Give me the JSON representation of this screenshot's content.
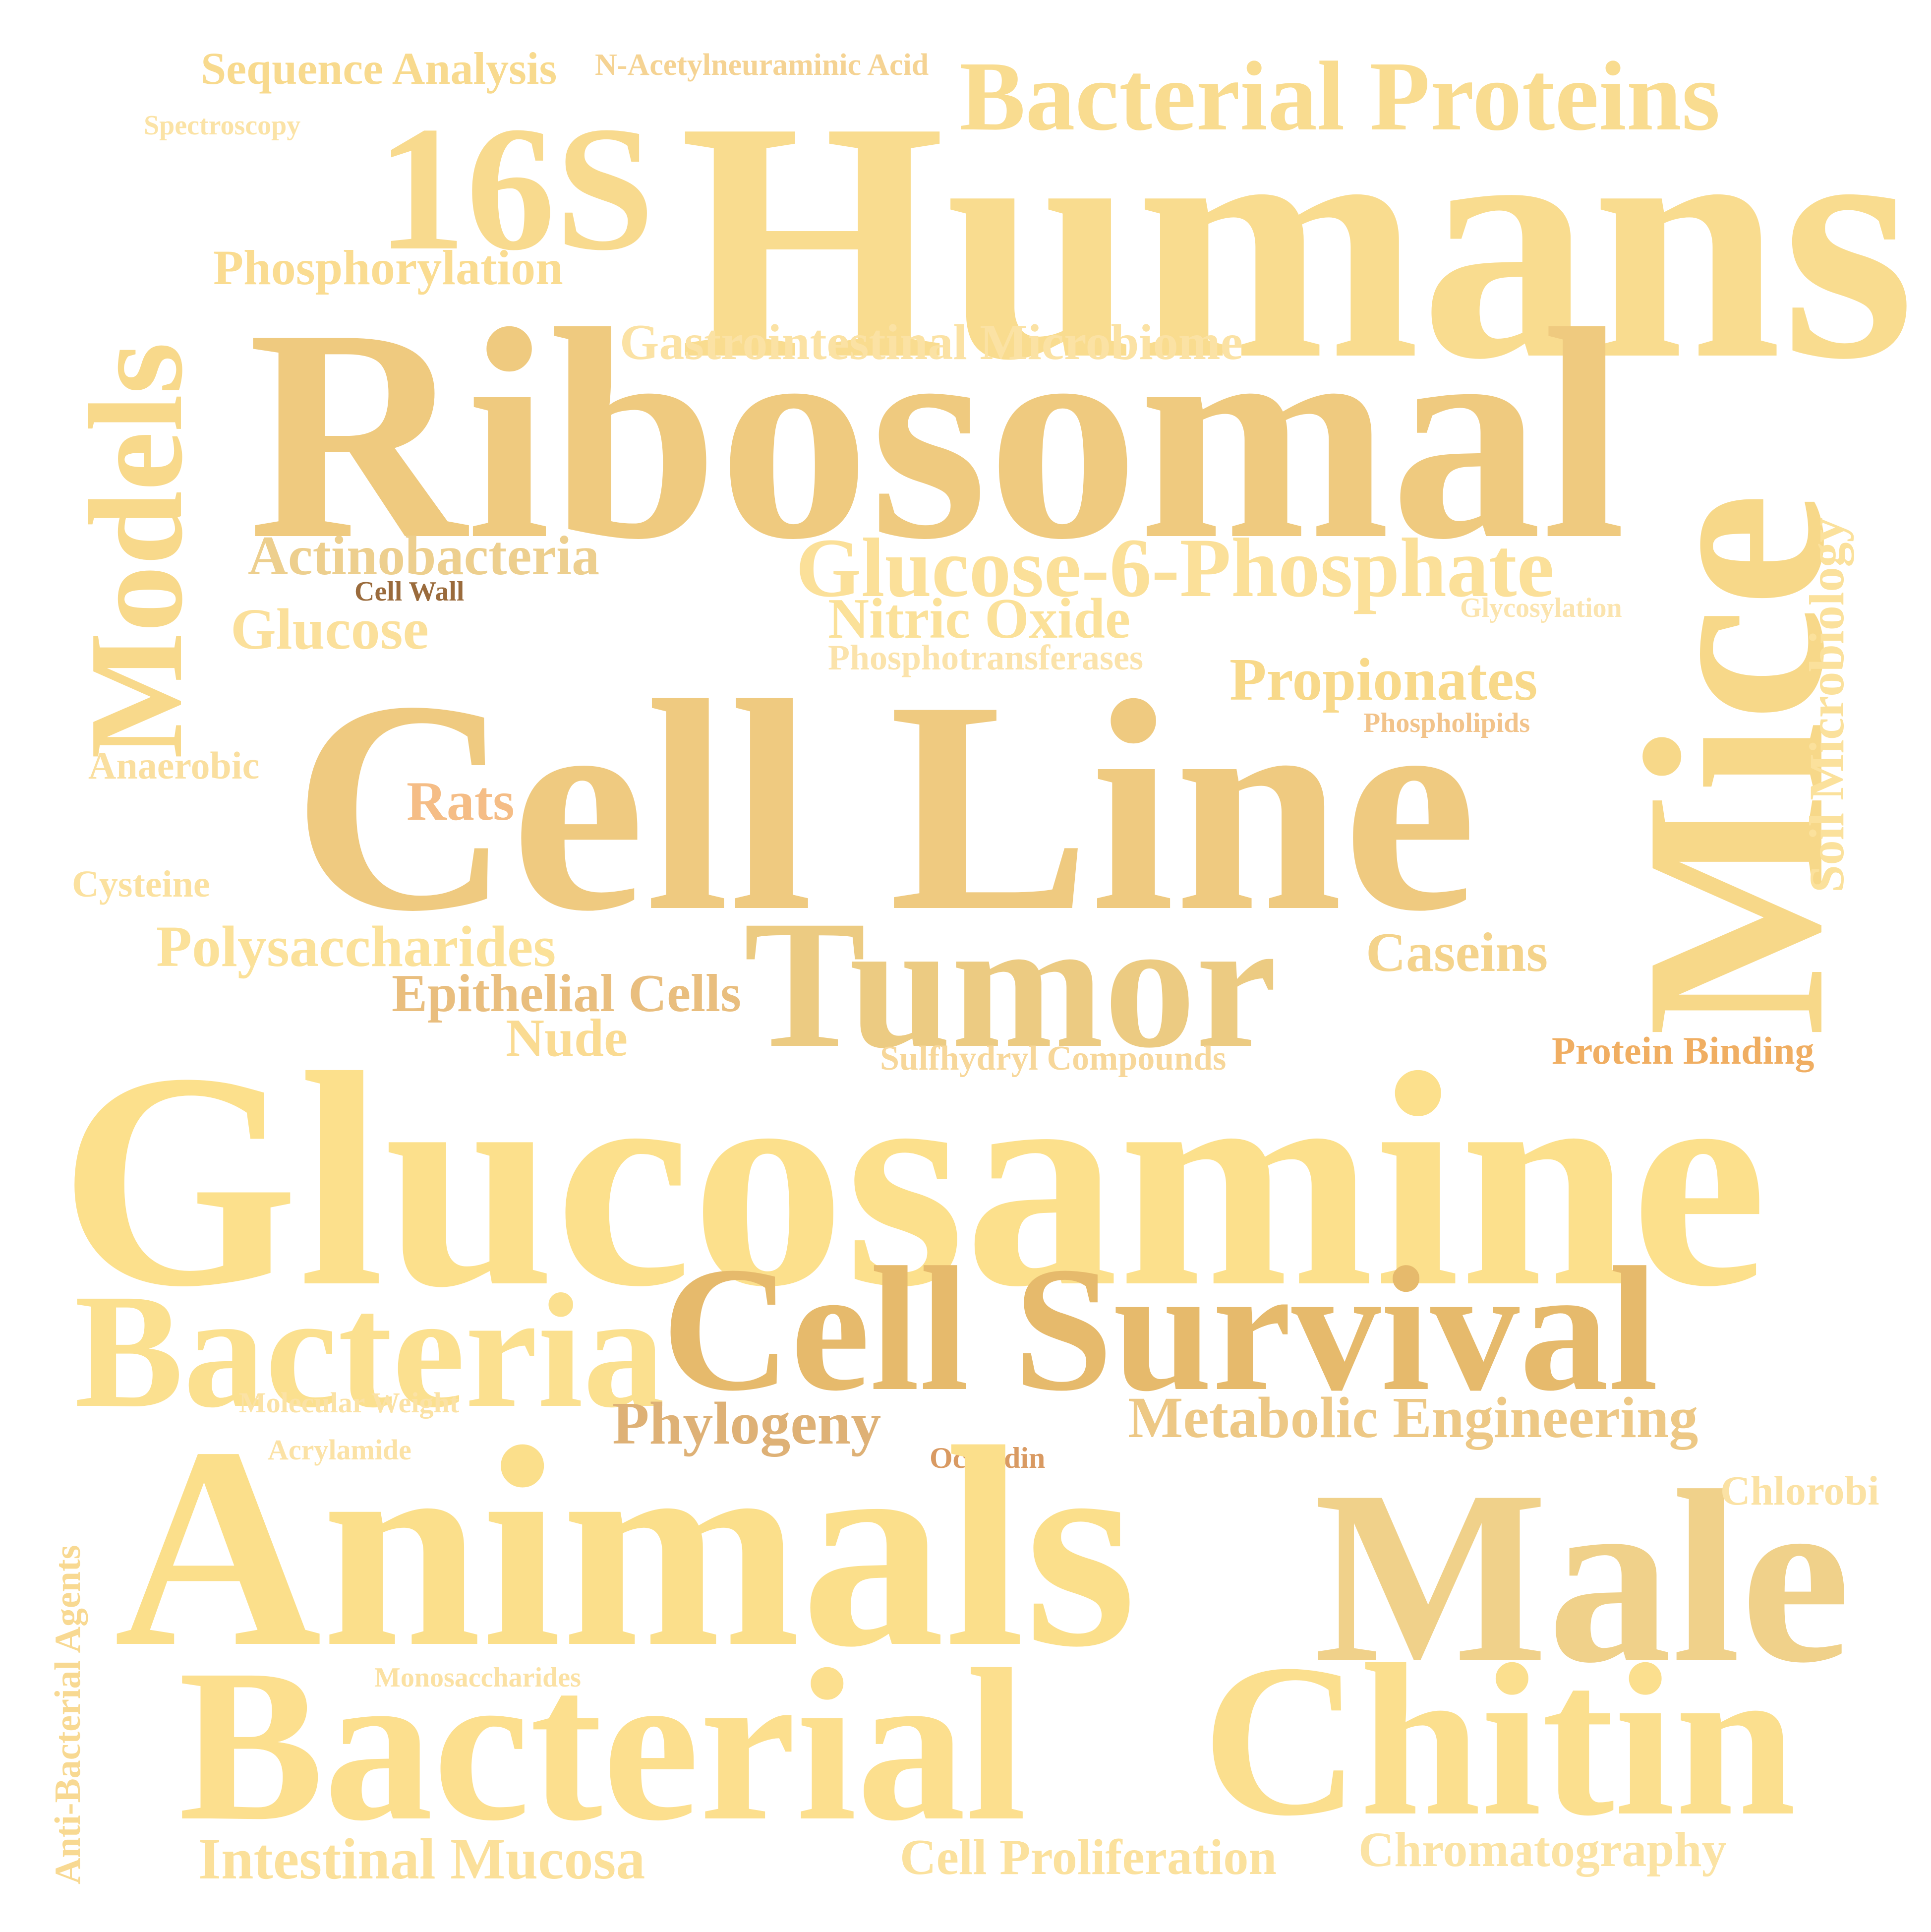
{
  "words": [
    {
      "id": "humans",
      "text": "Humans",
      "color": "#f9dc8f"
    },
    {
      "id": "ribosomal",
      "text": "Ribosomal",
      "color": "#efca7f"
    },
    {
      "id": "mice",
      "text": "Mice",
      "color": "#f7d889"
    },
    {
      "id": "models",
      "text": "Models",
      "color": "#f8d98b"
    },
    {
      "id": "16s",
      "text": "16S",
      "color": "#f8da8e"
    },
    {
      "id": "bacterial-proteins",
      "text": "Bacterial Proteins",
      "color": "#f9dc90"
    },
    {
      "id": "sequence-analysis",
      "text": "Sequence Analysis",
      "color": "#f8da8e"
    },
    {
      "id": "n-acetylneuraminic-acid",
      "text": "N-Acetylneuraminic Acid",
      "color": "#f5d393"
    },
    {
      "id": "spectroscopy",
      "text": "Spectroscopy",
      "color": "#fbe3a6"
    },
    {
      "id": "phosphorylation",
      "text": "Phosphorylation",
      "color": "#fadc91"
    },
    {
      "id": "gastrointestinal-microbiome",
      "text": "Gastrointestinal Microbiome",
      "color": "#fbe2a4"
    },
    {
      "id": "actinobacteria",
      "text": "Actinobacteria",
      "color": "#edcf8e"
    },
    {
      "id": "glucose-6-phosphate",
      "text": "Glucose-6-Phosphate",
      "color": "#fbe099"
    },
    {
      "id": "cell-wall",
      "text": "Cell Wall",
      "color": "#9a6b3c"
    },
    {
      "id": "glucose",
      "text": "Glucose",
      "color": "#fbe09b"
    },
    {
      "id": "nitric-oxide",
      "text": "Nitric Oxide",
      "color": "#fbe199"
    },
    {
      "id": "glycosylation",
      "text": "Glycosylation",
      "color": "#fbe4ae"
    },
    {
      "id": "phosphotransferases",
      "text": "Phosphotransferases",
      "color": "#fbe3ab"
    },
    {
      "id": "propionates",
      "text": "Propionates",
      "color": "#f8d98a"
    },
    {
      "id": "soil-microbiology",
      "text": "Soil Microbiology",
      "color": "#fbe19c"
    },
    {
      "id": "phospholipids",
      "text": "Phospholipids",
      "color": "#f2c38a"
    },
    {
      "id": "anaerobic",
      "text": "Anaerobic",
      "color": "#fadf9f"
    },
    {
      "id": "cell-line",
      "text": "Cell Line",
      "color": "#efca80"
    },
    {
      "id": "rats",
      "text": "Rats",
      "color": "#f5bd86"
    },
    {
      "id": "cysteine",
      "text": "Cysteine",
      "color": "#fbe19f"
    },
    {
      "id": "tumor",
      "text": "Tumor",
      "color": "#eccb82"
    },
    {
      "id": "polysaccharides",
      "text": "Polysaccharides",
      "color": "#fbe199"
    },
    {
      "id": "caseins",
      "text": "Caseins",
      "color": "#f4d38b"
    },
    {
      "id": "epithelial-cells",
      "text": "Epithelial Cells",
      "color": "#e9be7e"
    },
    {
      "id": "nude",
      "text": "Nude",
      "color": "#fadb92"
    },
    {
      "id": "sulfhydryl-compounds",
      "text": "Sulfhydryl Compounds",
      "color": "#f7d79a"
    },
    {
      "id": "protein-binding",
      "text": "Protein Binding",
      "color": "#f0ae62"
    },
    {
      "id": "glucosamine",
      "text": "Glucosamine",
      "color": "#fce08c"
    },
    {
      "id": "bacteria",
      "text": "Bacteria",
      "color": "#fbe08f"
    },
    {
      "id": "cell-survival",
      "text": "Cell Survival",
      "color": "#e6ba6c"
    },
    {
      "id": "molecular-weight",
      "text": "Molecular Weight",
      "color": "#fbe2a5"
    },
    {
      "id": "phylogeny",
      "text": "Phylogeny",
      "color": "#deb176"
    },
    {
      "id": "metabolic-engineering",
      "text": "Metabolic Engineering",
      "color": "#edc885"
    },
    {
      "id": "acrylamide",
      "text": "Acrylamide",
      "color": "#fbe2a6"
    },
    {
      "id": "occludin",
      "text": "Occludin",
      "color": "#d99a62"
    },
    {
      "id": "anti-bacterial-agents",
      "text": "Anti-Bacterial Agents",
      "color": "#f8d992"
    },
    {
      "id": "animals",
      "text": "Animals",
      "color": "#fbdf8b"
    },
    {
      "id": "male",
      "text": "Male",
      "color": "#f0d18a"
    },
    {
      "id": "chlorobi",
      "text": "Chlorobi",
      "color": "#fbe2a4"
    },
    {
      "id": "monosaccharides",
      "text": "Monosaccharides",
      "color": "#fbe1a3"
    },
    {
      "id": "bacterial",
      "text": "Bacterial",
      "color": "#fcdf8e"
    },
    {
      "id": "chitin",
      "text": "Chitin",
      "color": "#fbdf8e"
    },
    {
      "id": "intestinal-mucosa",
      "text": "Intestinal Mucosa",
      "color": "#fbe09a"
    },
    {
      "id": "cell-proliferation",
      "text": "Cell Proliferation",
      "color": "#fbe19d"
    },
    {
      "id": "chromatography",
      "text": "Chromatography",
      "color": "#fbe3a4"
    }
  ]
}
